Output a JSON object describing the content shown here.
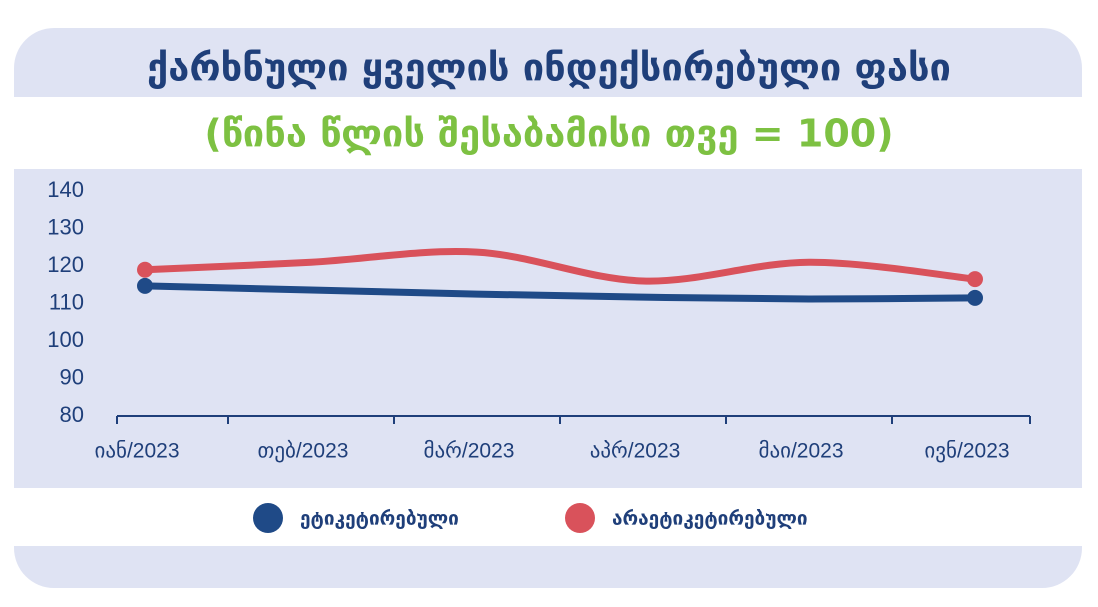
{
  "chart_data": {
    "type": "line",
    "title": "ქარხნული ყველის ინდექსირებული ფასი",
    "subtitle": "(წინა წლის შესაბამისი თვე = 100)",
    "categories": [
      "იან/2023",
      "თებ/2023",
      "მარ/2023",
      "აპრ/2023",
      "მაი/2023",
      "ივნ/2023"
    ],
    "series": [
      {
        "name": "ეტიკეტირებული",
        "color": "#1f4a87",
        "values": [
          114.7,
          113.6,
          112.5,
          111.7,
          111.2,
          111.5
        ]
      },
      {
        "name": "არაეტიკეტირებული",
        "color": "#d9525b",
        "values": [
          119,
          121,
          123.7,
          116,
          121,
          116.5
        ]
      }
    ],
    "ylim": [
      80,
      140
    ],
    "yticks": [
      80,
      90,
      100,
      110,
      120,
      130,
      140
    ]
  }
}
